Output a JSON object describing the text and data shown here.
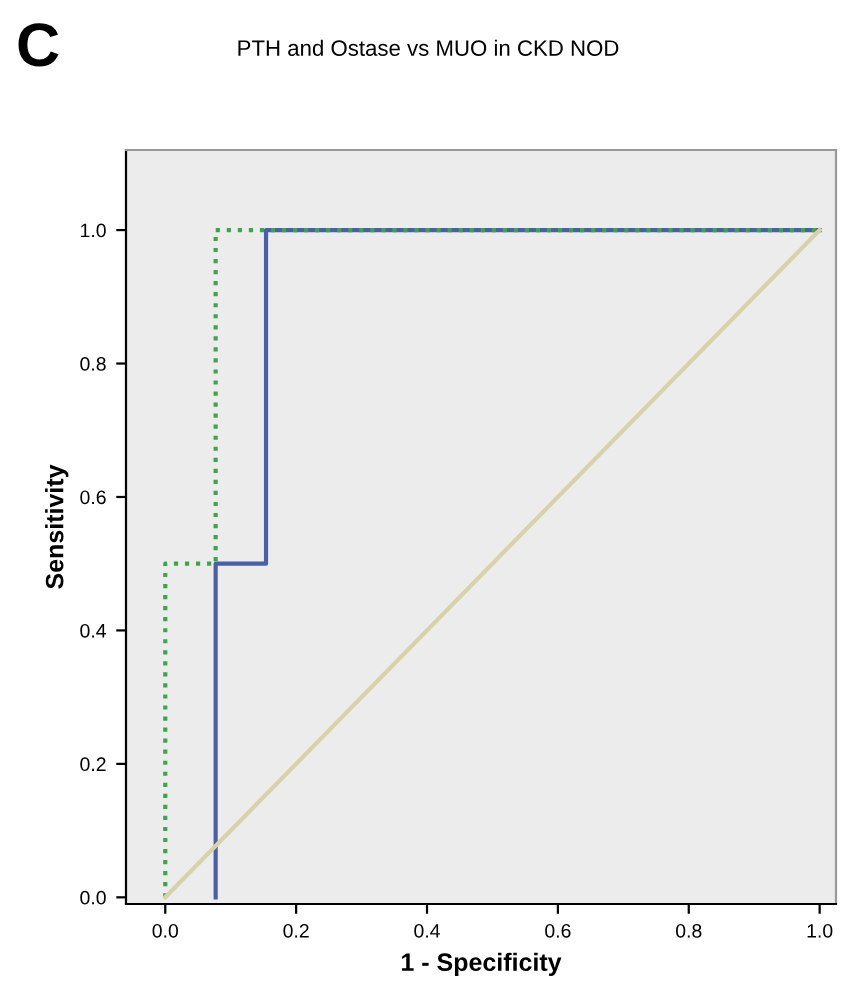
{
  "chart_data": {
    "type": "line",
    "title": "PTH and Ostase vs MUO in CKD NOD",
    "xlabel": "1 - Specificity",
    "ylabel": "Sensitivity",
    "annotations": [
      "C"
    ],
    "series": [
      {
        "color": "#4a5fa8",
        "line_style": "solid",
        "x": [
          0.077,
          0.077,
          0.154,
          0.154,
          1.0
        ],
        "values": [
          0.0,
          0.5,
          0.5,
          1.0,
          1.0
        ]
      },
      {
        "color": "#3aa64a",
        "line_style": "dotted",
        "x": [
          0.0,
          0.0,
          0.077,
          0.077,
          1.0
        ],
        "values": [
          0.0,
          0.5,
          0.5,
          1.0,
          1.0
        ]
      },
      {
        "color": "#d8d2a8",
        "line_style": "solid",
        "x": [
          0.0,
          1.0
        ],
        "values": [
          0.0,
          1.0
        ]
      }
    ],
    "xlim": [
      -0.06,
      1.025
    ],
    "ylim": [
      -0.01,
      1.12
    ],
    "xticks": [
      {
        "value": 0.0,
        "label": "0.0"
      },
      0.2,
      0.4,
      0.6,
      0.8,
      {
        "value": 1.0,
        "label": "1.0"
      }
    ],
    "yticks": [
      {
        "value": 0.0,
        "label": "0.0"
      },
      0.2,
      0.4,
      0.6,
      0.8,
      {
        "value": 1.0,
        "label": "1.0"
      }
    ],
    "grid": false,
    "legend": false,
    "marker": "none"
  }
}
